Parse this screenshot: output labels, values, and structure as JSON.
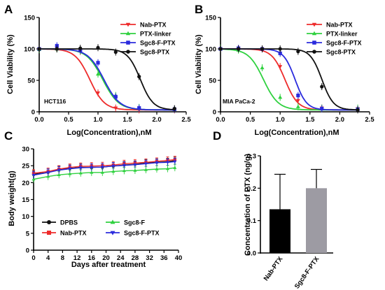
{
  "chart_data": [
    {
      "panel": "A",
      "type": "line",
      "xlabel": "Log(Concentration),nM",
      "ylabel": "Cell Viability (%)",
      "xlim": [
        0,
        2.5
      ],
      "ylim": [
        0,
        150
      ],
      "xticks": [
        "0.0",
        "0.5",
        "1.0",
        "1.5",
        "2.0",
        "2.5"
      ],
      "yticks": [
        "0",
        "50",
        "100",
        "150"
      ],
      "annotation": "HCT116",
      "legend_position": "top-right",
      "x": [
        0,
        0.301,
        0.699,
        1.0,
        1.301,
        1.699,
        2.301
      ],
      "series": [
        {
          "name": "Nab-PTX",
          "color": "#ee2b2b",
          "marker": "triangle-down",
          "ic50": 0.86,
          "hill": 3.5,
          "values": [
            100,
            101,
            96,
            30,
            6,
            3,
            3
          ]
        },
        {
          "name": "PTX-linker",
          "color": "#2fd13f",
          "marker": "triangle-up",
          "ic50": 1.08,
          "hill": 3.2,
          "values": [
            99,
            100,
            97,
            60,
            26,
            7,
            4
          ]
        },
        {
          "name": "Sgc8-F-PTX",
          "color": "#2b2bdd",
          "marker": "square",
          "ic50": 1.1,
          "hill": 3.2,
          "values": [
            100,
            105,
            98,
            78,
            24,
            6,
            4
          ]
        },
        {
          "name": "Sgc8-PTX",
          "color": "#111111",
          "marker": "circle",
          "ic50": 1.72,
          "hill": 4.0,
          "values": [
            100,
            100,
            101,
            102,
            95,
            56,
            5
          ]
        }
      ]
    },
    {
      "panel": "B",
      "type": "line",
      "xlabel": "Log(Concentration),nM",
      "ylabel": "Cell Viability (%)",
      "xlim": [
        0,
        2.5
      ],
      "ylim": [
        0,
        150
      ],
      "xticks": [
        "0.0",
        "0.5",
        "1.0",
        "1.5",
        "2.0",
        "2.5"
      ],
      "yticks": [
        "0",
        "50",
        "100",
        "150"
      ],
      "annotation": "MIA PaCa-2",
      "legend_position": "top-right",
      "x": [
        0,
        0.301,
        0.699,
        1.0,
        1.301,
        1.699,
        2.301
      ],
      "series": [
        {
          "name": "Nab-PTX",
          "color": "#ee2b2b",
          "marker": "triangle-down",
          "ic50": 1.08,
          "hill": 4.0,
          "values": [
            100,
            100,
            100,
            72,
            18,
            6,
            5
          ]
        },
        {
          "name": "PTX-linker",
          "color": "#2fd13f",
          "marker": "triangle-up",
          "ic50": 0.72,
          "hill": 3.5,
          "values": [
            101,
            98,
            70,
            23,
            8,
            6,
            6
          ]
        },
        {
          "name": "Sgc8-F-PTX",
          "color": "#2b2bdd",
          "marker": "square",
          "ic50": 1.25,
          "hill": 4.5,
          "values": [
            100,
            101,
            100,
            93,
            26,
            5,
            4
          ]
        },
        {
          "name": "Sgc8-PTX",
          "color": "#111111",
          "marker": "circle",
          "ic50": 1.7,
          "hill": 4.5,
          "values": [
            100,
            100,
            100,
            100,
            96,
            40,
            3
          ]
        }
      ]
    },
    {
      "panel": "C",
      "type": "line",
      "xlabel": "Days after treatment",
      "ylabel": "Body weight(g)",
      "xlim": [
        0,
        40
      ],
      "ylim": [
        0,
        30
      ],
      "xticks": [
        "0",
        "4",
        "8",
        "12",
        "16",
        "20",
        "24",
        "28",
        "32",
        "36",
        "40"
      ],
      "yticks": [
        "0",
        "5",
        "10",
        "15",
        "20",
        "25",
        "30"
      ],
      "legend_position": "bottom",
      "x": [
        0,
        4,
        7,
        10,
        13,
        16,
        19,
        22,
        25,
        28,
        31,
        34,
        37,
        39
      ],
      "series": [
        {
          "name": "DPBS",
          "color": "#111111",
          "marker": "circle",
          "values": [
            22.5,
            23,
            23.8,
            24.2,
            24.5,
            24.5,
            24.6,
            24.9,
            25.2,
            25.4,
            25.8,
            26,
            26.2,
            26.5
          ]
        },
        {
          "name": "Sgc8-F",
          "color": "#2fd13f",
          "marker": "triangle-up",
          "values": [
            21,
            21.8,
            22.3,
            22.6,
            22.8,
            23,
            23,
            23.3,
            23.5,
            23.6,
            23.8,
            24,
            24.1,
            24.4
          ]
        },
        {
          "name": "Nab-PTX",
          "color": "#ee2b2b",
          "marker": "square",
          "values": [
            22.8,
            23.3,
            24,
            24.5,
            24.8,
            24.9,
            25,
            25.2,
            25.6,
            25.8,
            26,
            26.3,
            26.6,
            26.8
          ]
        },
        {
          "name": "Sgc8-F-PTX",
          "color": "#2b2bdd",
          "marker": "triangle-down",
          "values": [
            22.2,
            23,
            23.7,
            24.1,
            24.4,
            24.5,
            24.6,
            24.9,
            25.1,
            25.3,
            25.6,
            25.9,
            26,
            26.2
          ]
        }
      ]
    },
    {
      "panel": "D",
      "type": "bar",
      "ylabel": "Concentration of PTX (ng/g)",
      "ylim": [
        0,
        0.3
      ],
      "yticks": [
        "0.0",
        "0.1",
        "0.2",
        "0.3"
      ],
      "categories": [
        "Nab-PTX",
        "Sgc8-F-PTX"
      ],
      "values": [
        0.135,
        0.2
      ],
      "errors": [
        0.108,
        0.058
      ],
      "colors": [
        "#000000",
        "#9d9ba3"
      ]
    }
  ]
}
